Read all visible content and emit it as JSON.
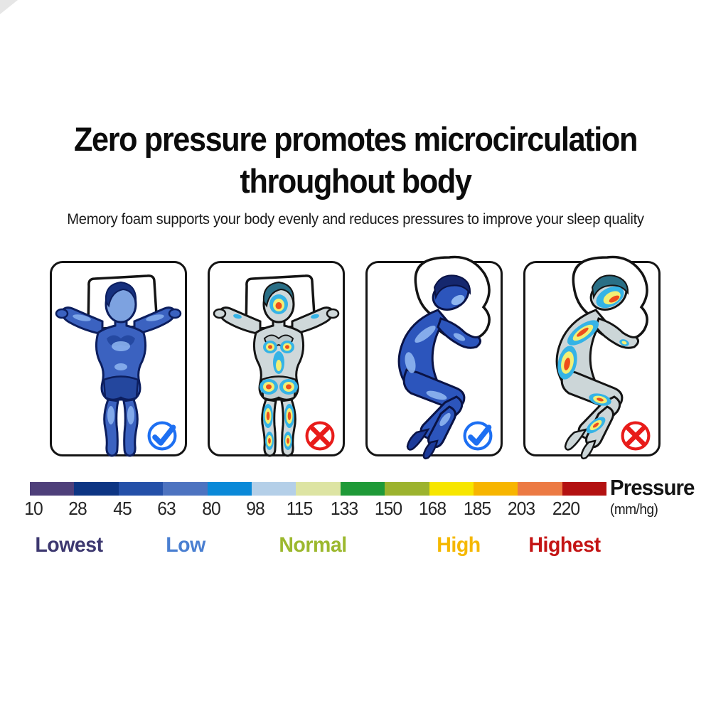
{
  "header": {
    "title_line1": "Zero pressure promotes microcirculation",
    "title_line2": "throughout body",
    "subtitle": "Memory foam supports your body evenly and reduces pressures to improve your sleep quality"
  },
  "panels": [
    {
      "pose": "back-sleeping",
      "pressure_map": "uniform-low",
      "verdict": "correct"
    },
    {
      "pose": "back-sleeping",
      "pressure_map": "high-pressure-hotspots",
      "verdict": "wrong"
    },
    {
      "pose": "side-sleeping",
      "pressure_map": "uniform-low",
      "verdict": "correct"
    },
    {
      "pose": "side-sleeping",
      "pressure_map": "high-pressure-hotspots",
      "verdict": "wrong"
    }
  ],
  "chart_data": {
    "type": "heatmap",
    "title": "Pressure",
    "unit": "(mm/hg)",
    "tick_values": [
      10,
      28,
      45,
      63,
      80,
      98,
      115,
      133,
      150,
      168,
      185,
      203,
      220
    ],
    "segment_colors": [
      "#4e3f7a",
      "#0d3583",
      "#2450a8",
      "#4d73c0",
      "#0a89d8",
      "#b4cfe8",
      "#dde4a3",
      "#1f9a38",
      "#9cb32e",
      "#f7e600",
      "#f7b500",
      "#ec7a43",
      "#b31111"
    ],
    "legend_position": "bottom",
    "categories": [
      {
        "label": "Lowest",
        "color": "#3d3870",
        "position_pct": 6.8
      },
      {
        "label": "Low",
        "color": "#4a7fd1",
        "position_pct": 27.0
      },
      {
        "label": "Normal",
        "color": "#9cb82e",
        "position_pct": 49.1
      },
      {
        "label": "High",
        "color": "#f5b800",
        "position_pct": 74.4
      },
      {
        "label": "Highest",
        "color": "#c41414",
        "position_pct": 92.7
      }
    ]
  },
  "colors": {
    "check_blue": "#1d6ff2",
    "cross_red": "#e81c1a",
    "panel_border": "#141414"
  }
}
